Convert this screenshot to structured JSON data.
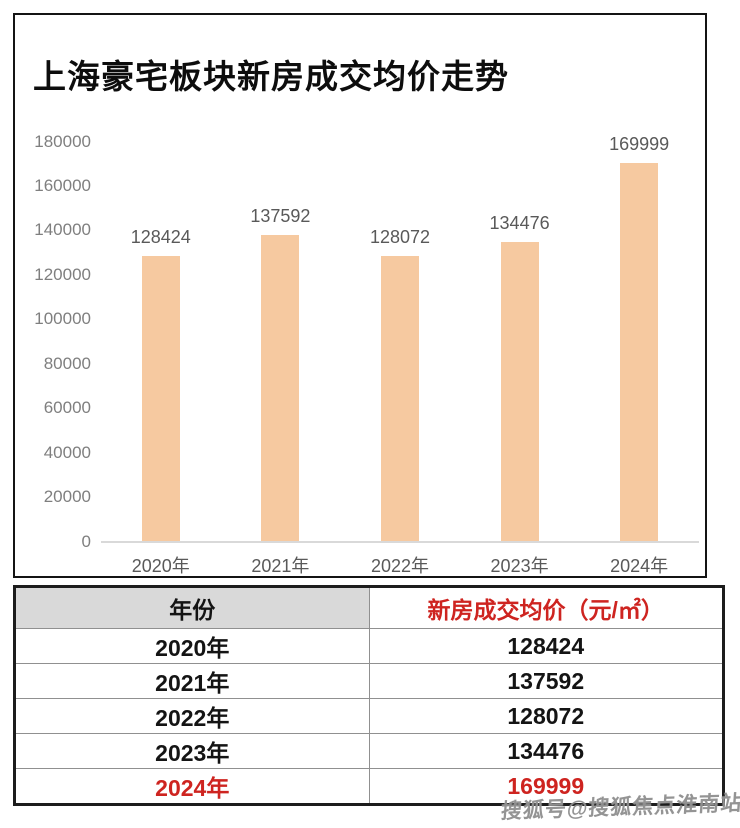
{
  "page": {
    "title": "上海豪宅板块新房成交均价走势",
    "watermark": "搜狐号@搜狐焦点淮南站"
  },
  "colors": {
    "bar": "#f6c9a0",
    "highlight_red": "#ce2420",
    "table_header_bg": "#d9d9d9",
    "axis_text": "#7f7f7f",
    "label_text": "#595959"
  },
  "chart_data": {
    "type": "bar",
    "title": "上海豪宅板块新房成交均价走势",
    "categories": [
      "2020年",
      "2021年",
      "2022年",
      "2023年",
      "2024年"
    ],
    "values": [
      128424,
      137592,
      128072,
      134476,
      169999
    ],
    "ylim": [
      0,
      180000
    ],
    "yticks": [
      0,
      20000,
      40000,
      60000,
      80000,
      100000,
      120000,
      140000,
      160000,
      180000
    ],
    "xlabel": "",
    "ylabel": "",
    "grid": false,
    "legend": "none",
    "bar_color": "#f6c9a0"
  },
  "table": {
    "headers": [
      {
        "label": "年份"
      },
      {
        "label": "新房成交均价（元/㎡）"
      }
    ],
    "rows": [
      {
        "year": "2020年",
        "price": "128424",
        "highlight": false
      },
      {
        "year": "2021年",
        "price": "137592",
        "highlight": false
      },
      {
        "year": "2022年",
        "price": "128072",
        "highlight": false
      },
      {
        "year": "2023年",
        "price": "134476",
        "highlight": false
      },
      {
        "year": "2024年",
        "price": "169999",
        "highlight": true
      }
    ]
  }
}
